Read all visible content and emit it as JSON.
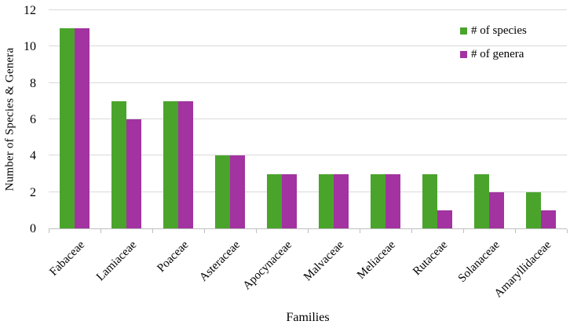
{
  "chart_data": {
    "type": "bar",
    "title": "",
    "xlabel": "Families",
    "ylabel": "Number of Species & Genera",
    "categories": [
      "Fabaceae",
      "Lamiaceae",
      "Poaceae",
      "Asteraceae",
      "Apocynaceae",
      "Malvaceae",
      "Meliaceae",
      "Rutaceae",
      "Solanaceae",
      "Amaryllidaceae"
    ],
    "series": [
      {
        "name": "# of species",
        "color": "#4AA42C",
        "values": [
          11,
          7,
          7,
          4,
          3,
          3,
          3,
          3,
          3,
          2
        ]
      },
      {
        "name": "# of genera",
        "color": "#A233A0",
        "values": [
          11,
          6,
          7,
          4,
          3,
          3,
          3,
          1,
          2,
          1
        ]
      }
    ],
    "ylim": [
      0,
      12
    ],
    "yticks": [
      0,
      2,
      4,
      6,
      8,
      10,
      12
    ],
    "grid": "horizontal",
    "legend_position": "top-right",
    "colors": {
      "gridline": "#D9D9D9",
      "axis": "#BFBFBF",
      "text": "#000000",
      "background": "#FFFFFF"
    }
  }
}
